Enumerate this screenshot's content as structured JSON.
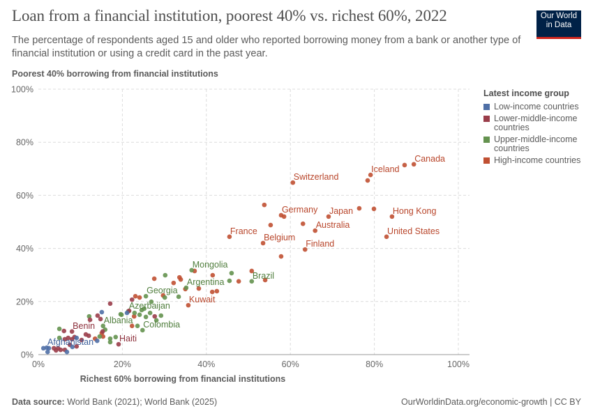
{
  "header": {
    "title": "Loan from a financial institution, poorest 40% vs. richest 60%, 2022",
    "subtitle": "The percentage of respondents aged 15 and older who reported borrowing money from a bank or another type of financial institution or using a credit card in the past year.",
    "logo_line1": "Our World",
    "logo_line2": "in Data"
  },
  "footer": {
    "source_label": "Data source:",
    "source_text": " World Bank (2021); World Bank (2025)",
    "url": "OurWorldinData.org/economic-growth | CC BY"
  },
  "chart_data": {
    "type": "scatter",
    "title": "Loan from a financial institution, poorest 40% vs. richest 60%, 2022",
    "xlabel": "Richest 60% borrowing from financial institutions",
    "ylabel": "Poorest 40% borrowing from financial institutions",
    "xlim": [
      0,
      100
    ],
    "ylim": [
      0,
      100
    ],
    "x_ticks": [
      "0%",
      "20%",
      "40%",
      "60%",
      "80%",
      "100%"
    ],
    "y_ticks": [
      "0%",
      "20%",
      "40%",
      "60%",
      "80%",
      "100%"
    ],
    "grid": true,
    "legend_placement": "right",
    "legend_title": "Latest income group",
    "groups": [
      {
        "name": "Low-income countries",
        "color": "#4F6FA6",
        "label_color": "#3C5E9A"
      },
      {
        "name": "Lower-middle-income countries",
        "color": "#9A3D4A",
        "label_color": "#8C2F3B"
      },
      {
        "name": "Upper-middle-income countries",
        "color": "#64924F",
        "label_color": "#4F7D3C"
      },
      {
        "name": "High-income countries",
        "color": "#C05032",
        "label_color": "#B8452A"
      }
    ],
    "points": [
      {
        "x": 89.4,
        "y": 71.7,
        "g": 3,
        "label": "Canada"
      },
      {
        "x": 87.2,
        "y": 71.4,
        "g": 3
      },
      {
        "x": 79.1,
        "y": 67.7,
        "g": 3,
        "label": "Iceland"
      },
      {
        "x": 78.4,
        "y": 65.6,
        "g": 3
      },
      {
        "x": 60.6,
        "y": 64.8,
        "g": 3,
        "label": "Switzerland"
      },
      {
        "x": 57.8,
        "y": 52.5,
        "g": 3,
        "label": "Germany"
      },
      {
        "x": 58.5,
        "y": 52.0,
        "g": 3
      },
      {
        "x": 53.8,
        "y": 56.4,
        "g": 3
      },
      {
        "x": 69.1,
        "y": 52.0,
        "g": 3,
        "label": "Japan"
      },
      {
        "x": 76.4,
        "y": 55.1,
        "g": 3
      },
      {
        "x": 79.9,
        "y": 54.9,
        "g": 3
      },
      {
        "x": 84.2,
        "y": 52.0,
        "g": 3,
        "label": "Hong Kong"
      },
      {
        "x": 55.3,
        "y": 48.8,
        "g": 3
      },
      {
        "x": 63.0,
        "y": 49.3,
        "g": 3
      },
      {
        "x": 65.9,
        "y": 46.7,
        "g": 3,
        "label": "Australia"
      },
      {
        "x": 45.5,
        "y": 44.4,
        "g": 3,
        "label": "France"
      },
      {
        "x": 53.5,
        "y": 42.0,
        "g": 3,
        "label": "Belgium"
      },
      {
        "x": 82.9,
        "y": 44.4,
        "g": 3,
        "label": "United States"
      },
      {
        "x": 63.5,
        "y": 39.6,
        "g": 3,
        "label": "Finland"
      },
      {
        "x": 57.8,
        "y": 37.0,
        "g": 3
      },
      {
        "x": 37.2,
        "y": 31.5,
        "g": 3
      },
      {
        "x": 50.8,
        "y": 31.5,
        "g": 3
      },
      {
        "x": 54.0,
        "y": 28.1,
        "g": 3
      },
      {
        "x": 41.5,
        "y": 29.9,
        "g": 3
      },
      {
        "x": 27.6,
        "y": 28.6,
        "g": 3
      },
      {
        "x": 33.6,
        "y": 29.1,
        "g": 3
      },
      {
        "x": 33.9,
        "y": 28.3,
        "g": 3
      },
      {
        "x": 32.2,
        "y": 27.0,
        "g": 3
      },
      {
        "x": 47.7,
        "y": 27.6,
        "g": 3
      },
      {
        "x": 35.0,
        "y": 24.7,
        "g": 3
      },
      {
        "x": 38.2,
        "y": 24.9,
        "g": 3
      },
      {
        "x": 41.4,
        "y": 23.6,
        "g": 3
      },
      {
        "x": 42.5,
        "y": 23.9,
        "g": 3
      },
      {
        "x": 29.7,
        "y": 22.3,
        "g": 3
      },
      {
        "x": 23.1,
        "y": 22.0,
        "g": 3
      },
      {
        "x": 24.1,
        "y": 21.5,
        "g": 3
      },
      {
        "x": 35.7,
        "y": 18.6,
        "g": 3,
        "label": "Kuwait"
      },
      {
        "x": 22.8,
        "y": 14.4,
        "g": 3
      },
      {
        "x": 22.3,
        "y": 10.8,
        "g": 3
      },
      {
        "x": 15.1,
        "y": 8.1,
        "g": 3
      },
      {
        "x": 15.4,
        "y": 6.8,
        "g": 3
      },
      {
        "x": 13.5,
        "y": 6.0,
        "g": 3
      },
      {
        "x": 36.5,
        "y": 31.8,
        "g": 2,
        "label": "Mongolia"
      },
      {
        "x": 46.0,
        "y": 30.7,
        "g": 2
      },
      {
        "x": 30.2,
        "y": 29.9,
        "g": 2
      },
      {
        "x": 45.5,
        "y": 27.8,
        "g": 2
      },
      {
        "x": 50.8,
        "y": 27.6,
        "g": 2,
        "label": "Brazil"
      },
      {
        "x": 35.2,
        "y": 25.2,
        "g": 2,
        "label": "Argentina"
      },
      {
        "x": 25.6,
        "y": 22.0,
        "g": 2,
        "label": "Georgia"
      },
      {
        "x": 30.1,
        "y": 21.5,
        "g": 2
      },
      {
        "x": 33.4,
        "y": 21.8,
        "g": 2
      },
      {
        "x": 26.9,
        "y": 19.9,
        "g": 2
      },
      {
        "x": 24.6,
        "y": 16.8,
        "g": 2
      },
      {
        "x": 25.2,
        "y": 17.3,
        "g": 2
      },
      {
        "x": 26.6,
        "y": 15.7,
        "g": 2
      },
      {
        "x": 22.9,
        "y": 15.7,
        "g": 2
      },
      {
        "x": 24.1,
        "y": 15.0,
        "g": 2
      },
      {
        "x": 19.8,
        "y": 15.0,
        "g": 2
      },
      {
        "x": 25.6,
        "y": 14.2,
        "g": 2
      },
      {
        "x": 29.2,
        "y": 14.7,
        "g": 2
      },
      {
        "x": 28.1,
        "y": 12.9,
        "g": 2
      },
      {
        "x": 23.6,
        "y": 10.8,
        "g": 2
      },
      {
        "x": 24.8,
        "y": 9.2,
        "g": 2,
        "label": "Colombia"
      },
      {
        "x": 21.4,
        "y": 16.3,
        "g": 2,
        "label": "Azerbaijan"
      },
      {
        "x": 15.9,
        "y": 9.4,
        "g": 2
      },
      {
        "x": 12.1,
        "y": 14.4,
        "g": 2
      },
      {
        "x": 19.6,
        "y": 15.2,
        "g": 2
      },
      {
        "x": 15.4,
        "y": 10.8,
        "g": 2,
        "label": "Albania"
      },
      {
        "x": 5.0,
        "y": 9.7,
        "g": 2
      },
      {
        "x": 14.6,
        "y": 6.8,
        "g": 2
      },
      {
        "x": 17.1,
        "y": 6.0,
        "g": 2
      },
      {
        "x": 17.1,
        "y": 4.7,
        "g": 2
      },
      {
        "x": 18.4,
        "y": 6.6,
        "g": 2
      },
      {
        "x": 5.0,
        "y": 6.3,
        "g": 2
      },
      {
        "x": 17.1,
        "y": 19.2,
        "g": 1
      },
      {
        "x": 22.3,
        "y": 20.7,
        "g": 1
      },
      {
        "x": 21.6,
        "y": 16.5,
        "g": 1
      },
      {
        "x": 14.1,
        "y": 14.7,
        "g": 1
      },
      {
        "x": 14.8,
        "y": 13.4,
        "g": 1
      },
      {
        "x": 12.3,
        "y": 13.1,
        "g": 1
      },
      {
        "x": 27.7,
        "y": 14.4,
        "g": 1
      },
      {
        "x": 6.1,
        "y": 8.9,
        "g": 1
      },
      {
        "x": 8.0,
        "y": 8.7,
        "g": 1,
        "label": "Benin"
      },
      {
        "x": 11.3,
        "y": 7.6,
        "g": 1
      },
      {
        "x": 12.0,
        "y": 7.1,
        "g": 1
      },
      {
        "x": 15.3,
        "y": 8.7,
        "g": 1
      },
      {
        "x": 19.1,
        "y": 3.9,
        "g": 1,
        "label": "Haiti"
      },
      {
        "x": 6.3,
        "y": 5.8,
        "g": 1
      },
      {
        "x": 7.1,
        "y": 6.3,
        "g": 1
      },
      {
        "x": 8.0,
        "y": 5.8,
        "g": 1
      },
      {
        "x": 8.6,
        "y": 6.6,
        "g": 1
      },
      {
        "x": 10.3,
        "y": 5.5,
        "g": 1
      },
      {
        "x": 3.7,
        "y": 2.4,
        "g": 1
      },
      {
        "x": 4.2,
        "y": 1.6,
        "g": 1
      },
      {
        "x": 5.3,
        "y": 1.8,
        "g": 1
      },
      {
        "x": 6.3,
        "y": 1.8,
        "g": 1
      },
      {
        "x": 4.7,
        "y": 2.4,
        "g": 1
      },
      {
        "x": 9.1,
        "y": 3.1,
        "g": 1
      },
      {
        "x": 7.5,
        "y": 3.7,
        "g": 1
      },
      {
        "x": 2.0,
        "y": 2.6,
        "g": 0,
        "label": "Afghanistan"
      },
      {
        "x": 2.5,
        "y": 2.4,
        "g": 0
      },
      {
        "x": 2.2,
        "y": 1.0,
        "g": 0
      },
      {
        "x": 6.8,
        "y": 1.0,
        "g": 0
      },
      {
        "x": 8.1,
        "y": 2.9,
        "g": 0
      },
      {
        "x": 9.1,
        "y": 6.3,
        "g": 0
      },
      {
        "x": 15.1,
        "y": 16.0,
        "g": 0
      },
      {
        "x": 21.1,
        "y": 15.7,
        "g": 0
      },
      {
        "x": 14.0,
        "y": 5.2,
        "g": 0
      },
      {
        "x": 1.2,
        "y": 2.4,
        "g": 0
      }
    ]
  }
}
